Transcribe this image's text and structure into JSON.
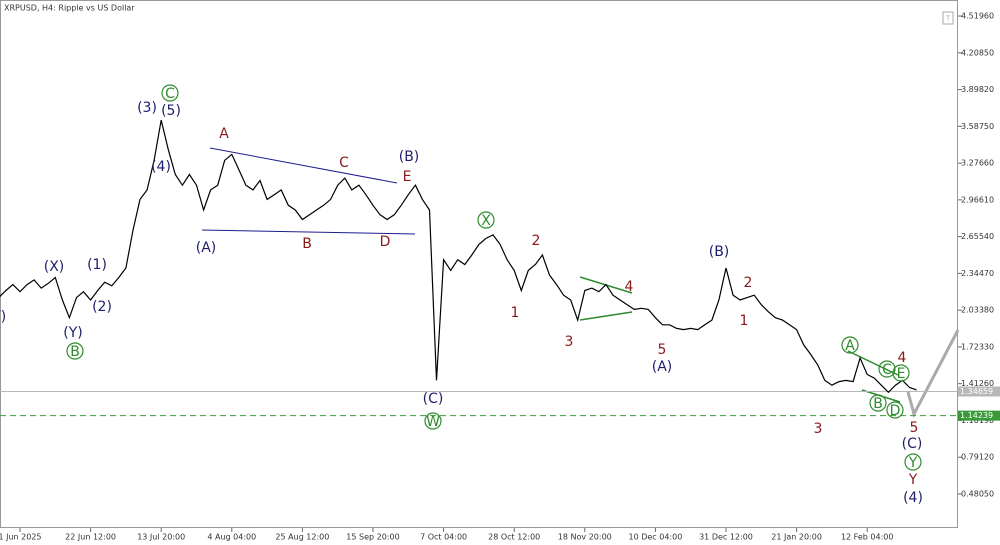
{
  "chart_data": {
    "type": "line",
    "title": "XRPUSD, H4:  Ripple vs US Dollar",
    "categories": [
      null,
      null,
      null,
      "1 Jun 2025",
      null,
      null,
      null,
      null,
      null,
      null,
      null,
      null,
      null,
      "22 Jun 12:00",
      null,
      null,
      null,
      null,
      null,
      null,
      null,
      null,
      null,
      "13 Jul 20:00",
      null,
      null,
      null,
      null,
      null,
      null,
      null,
      null,
      null,
      "4 Aug 04:00",
      null,
      null,
      null,
      null,
      null,
      null,
      null,
      null,
      null,
      "25 Aug 12:00",
      null,
      null,
      null,
      null,
      null,
      null,
      null,
      null,
      null,
      "15 Sep 20:00",
      null,
      null,
      null,
      null,
      null,
      null,
      null,
      null,
      null,
      "7 Oct 04:00",
      null,
      null,
      null,
      null,
      null,
      null,
      null,
      null,
      null,
      "28 Oct 12:00",
      null,
      null,
      null,
      null,
      null,
      null,
      null,
      null,
      null,
      "18 Nov 20:00",
      null,
      null,
      null,
      null,
      null,
      null,
      null,
      null,
      null,
      "10 Dec 04:00",
      null,
      null,
      null,
      null,
      null,
      null,
      null,
      null,
      null,
      "31 Dec 12:00",
      null,
      null,
      null,
      null,
      null,
      null,
      null,
      null,
      null,
      "21 Jan 20:00",
      null,
      null,
      null,
      null,
      null,
      null,
      null,
      null,
      null,
      "12 Feb 04:00",
      null,
      null,
      null,
      null,
      null,
      null,
      null
    ],
    "values": [
      2.14,
      2.2,
      2.25,
      2.19,
      2.25,
      2.29,
      2.22,
      2.26,
      2.31,
      2.12,
      1.97,
      2.14,
      2.19,
      2.12,
      2.2,
      2.27,
      2.24,
      2.31,
      2.39,
      2.71,
      2.97,
      3.05,
      3.3,
      3.64,
      3.39,
      3.18,
      3.09,
      3.18,
      3.09,
      2.88,
      3.05,
      3.09,
      3.3,
      3.35,
      3.22,
      3.09,
      3.05,
      3.13,
      2.97,
      3.01,
      3.05,
      2.92,
      2.88,
      2.8,
      2.84,
      2.88,
      2.92,
      2.97,
      3.09,
      3.15,
      3.05,
      3.09,
      3.01,
      2.92,
      2.84,
      2.8,
      2.84,
      2.92,
      3.01,
      3.09,
      2.97,
      2.88,
      1.44,
      2.46,
      2.37,
      2.46,
      2.42,
      2.5,
      2.59,
      2.64,
      2.67,
      2.59,
      2.46,
      2.37,
      2.2,
      2.37,
      2.42,
      2.5,
      2.33,
      2.25,
      2.16,
      2.12,
      1.95,
      2.2,
      2.22,
      2.19,
      2.25,
      2.16,
      2.12,
      2.08,
      2.04,
      2.05,
      2.04,
      1.97,
      1.91,
      1.91,
      1.88,
      1.87,
      1.88,
      1.87,
      1.91,
      1.95,
      2.12,
      2.39,
      2.16,
      2.12,
      2.14,
      2.16,
      2.08,
      2.02,
      1.97,
      1.95,
      1.91,
      1.87,
      1.74,
      1.66,
      1.57,
      1.44,
      1.4,
      1.43,
      1.44,
      1.43,
      1.63,
      1.49,
      1.46,
      1.4,
      1.34,
      1.4,
      1.44,
      1.38,
      1.36
    ],
    "color": "#000000",
    "ylim": [
      0.193,
      4.655
    ],
    "yticks": [
      {
        "value": 0.4805,
        "label": "0.48050"
      },
      {
        "value": 0.7912,
        "label": "0.79120"
      },
      {
        "value": 1.1019,
        "label": "1.10190"
      },
      {
        "value": 1.4126,
        "label": "1.41260"
      },
      {
        "value": 1.7233,
        "label": "1.72330"
      },
      {
        "value": 2.0338,
        "label": "2.03380"
      },
      {
        "value": 2.3447,
        "label": "2.34470"
      },
      {
        "value": 2.6554,
        "label": "2.65540"
      },
      {
        "value": 2.9661,
        "label": "2.96610"
      },
      {
        "value": 3.2766,
        "label": "3.27660"
      },
      {
        "value": 3.5875,
        "label": "3.58750"
      },
      {
        "value": 3.8982,
        "label": "3.89820"
      },
      {
        "value": 4.2085,
        "label": "4.20850"
      },
      {
        "value": 4.5196,
        "label": "4.51960"
      }
    ],
    "price_lines": [
      {
        "value": 1.34659,
        "label": "1.34659",
        "color": "#b8b8b8",
        "dashed": false
      },
      {
        "value": 1.14239,
        "label": "1.14239",
        "color": "#3a9a3a",
        "dashed": true
      }
    ],
    "annotations": [
      {
        "text": "(V)",
        "color": "#1e1e6e",
        "circled": false
      },
      {
        "text": "(X)",
        "color": "#1e1e6e",
        "circled": false
      },
      {
        "text": "(1)",
        "color": "#1e1e6e",
        "circled": false
      },
      {
        "text": "(2)",
        "color": "#1e1e6e",
        "circled": false
      },
      {
        "text": "(Y)",
        "color": "#1e1e6e",
        "circled": false
      },
      {
        "text": "(3)",
        "color": "#1e1e6e",
        "circled": false
      },
      {
        "text": "(5)",
        "color": "#1e1e6e",
        "circled": false
      },
      {
        "text": "(4)",
        "color": "#1e1e6e",
        "circled": false
      },
      {
        "text": "(A)",
        "color": "#1e1e6e",
        "circled": false
      },
      {
        "text": "(B)",
        "color": "#1e1e6e",
        "circled": false
      },
      {
        "text": "(C)",
        "color": "#1e1e6e",
        "circled": false
      },
      {
        "text": "(A)",
        "color": "#1e1e6e",
        "circled": false
      },
      {
        "text": "(B)",
        "color": "#1e1e6e",
        "circled": false
      },
      {
        "text": "(C)",
        "color": "#1e1e6e",
        "circled": false
      },
      {
        "text": "(4)",
        "color": "#1e1e6e",
        "circled": false
      },
      {
        "text": "A",
        "color": "#8b1a1a",
        "circled": false
      },
      {
        "text": "C",
        "color": "#8b1a1a",
        "circled": false
      },
      {
        "text": "E",
        "color": "#8b1a1a",
        "circled": false
      },
      {
        "text": "B",
        "color": "#8b1a1a",
        "circled": false
      },
      {
        "text": "D",
        "color": "#8b1a1a",
        "circled": false
      },
      {
        "text": "2",
        "color": "#8b1a1a",
        "circled": false
      },
      {
        "text": "1",
        "color": "#8b1a1a",
        "circled": false
      },
      {
        "text": "4",
        "color": "#8b1a1a",
        "circled": false
      },
      {
        "text": "3",
        "color": "#8b1a1a",
        "circled": false
      },
      {
        "text": "5",
        "color": "#8b1a1a",
        "circled": false
      },
      {
        "text": "2",
        "color": "#8b1a1a",
        "circled": false
      },
      {
        "text": "1",
        "color": "#8b1a1a",
        "circled": false
      },
      {
        "text": "3",
        "color": "#8b1a1a",
        "circled": false
      },
      {
        "text": "4",
        "color": "#8b1a1a",
        "circled": false
      },
      {
        "text": "5",
        "color": "#8b1a1a",
        "circled": false
      },
      {
        "text": "Y",
        "color": "#8b1a1a",
        "circled": false
      },
      {
        "text": "C",
        "color": "#2e8b2e",
        "circled": true
      },
      {
        "text": "B",
        "color": "#2e8b2e",
        "circled": true
      },
      {
        "text": "X",
        "color": "#2e8b2e",
        "circled": true
      },
      {
        "text": "W",
        "color": "#2e8b2e",
        "circled": true
      },
      {
        "text": "A",
        "color": "#2e8b2e",
        "circled": true
      },
      {
        "text": "C",
        "color": "#2e8b2e",
        "circled": true
      },
      {
        "text": "E",
        "color": "#2e8b2e",
        "circled": true
      },
      {
        "text": "B",
        "color": "#2e8b2e",
        "circled": true
      },
      {
        "text": "D",
        "color": "#2e8b2e",
        "circled": true
      },
      {
        "text": "Y",
        "color": "#2e8b2e",
        "circled": true
      }
    ]
  }
}
